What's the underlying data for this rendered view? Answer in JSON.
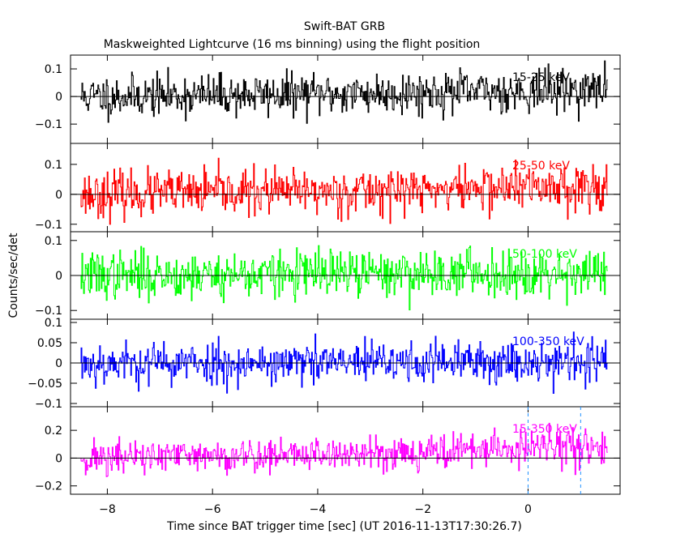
{
  "header": {
    "title": "Swift-BAT GRB",
    "subtitle": "Maskweighted Lightcurve (16 ms binning) using the flight position"
  },
  "axes": {
    "xlabel": "Time since BAT trigger time [sec] (UT 2016-11-13T17:30:26.7)",
    "ylabel": "Counts/sec/det"
  },
  "chart_data": {
    "type": "line",
    "title": "Swift-BAT GRB",
    "subtitle": "Maskweighted Lightcurve (16 ms binning) using the flight position",
    "xlabel": "Time since BAT trigger time [sec] (UT 2016-11-13T17:30:26.7)",
    "ylabel": "Counts/sec/det",
    "xlim": [
      -8.7,
      1.75
    ],
    "x_ticks": [
      -8,
      -6,
      -4,
      -2,
      0
    ],
    "x_tick_labels": [
      "−8",
      "−6",
      "−4",
      "−2",
      "0"
    ],
    "x_range": [
      -8.5,
      1.5
    ],
    "bin_width": 0.016,
    "vertical_markers": [
      0,
      1
    ],
    "panels": [
      {
        "band": "15-25 keV",
        "color": "#000000",
        "ylim": [
          -0.17,
          0.15
        ],
        "ticks": [
          0.1,
          0,
          -0.1
        ],
        "tick_labels": [
          "0.1",
          "0",
          "−0.1"
        ],
        "noise_sigma": 0.05,
        "trend": [
          0,
          0.01,
          0.025
        ],
        "seed": 11
      },
      {
        "band": "25-50 keV",
        "color": "#ff0000",
        "ylim": [
          -0.125,
          0.17
        ],
        "ticks": [
          0.1,
          0,
          -0.1
        ],
        "tick_labels": [
          "0.1",
          "0",
          "−0.1"
        ],
        "noise_sigma": 0.05,
        "trend": [
          0,
          0.01,
          0.03
        ],
        "seed": 23
      },
      {
        "band": "50-100 keV",
        "color": "#00ff00",
        "ylim": [
          -0.125,
          0.125
        ],
        "ticks": [
          0.1,
          0,
          -0.1
        ],
        "tick_labels": [
          "0.1",
          "0",
          "−0.1"
        ],
        "noise_sigma": 0.045,
        "trend": [
          0,
          0.005,
          0.01
        ],
        "seed": 37
      },
      {
        "band": "100-350 keV",
        "color": "#0000ff",
        "ylim": [
          -0.108,
          0.108
        ],
        "ticks": [
          0.1,
          0.05,
          0,
          -0.05,
          -0.1
        ],
        "tick_labels": [
          "0.1",
          "0.05",
          "0",
          "−0.05",
          "−0.1"
        ],
        "noise_sigma": 0.035,
        "trend": [
          0,
          0,
          0.005
        ],
        "seed": 53
      },
      {
        "band": "15-350 keV",
        "color": "#ff00ff",
        "ylim": [
          -0.26,
          0.37
        ],
        "ticks": [
          0.2,
          0,
          -0.2
        ],
        "tick_labels": [
          "0.2",
          "0",
          "−0.2"
        ],
        "noise_sigma": 0.085,
        "trend": [
          0,
          0.03,
          0.09
        ],
        "seed": 71
      }
    ]
  }
}
